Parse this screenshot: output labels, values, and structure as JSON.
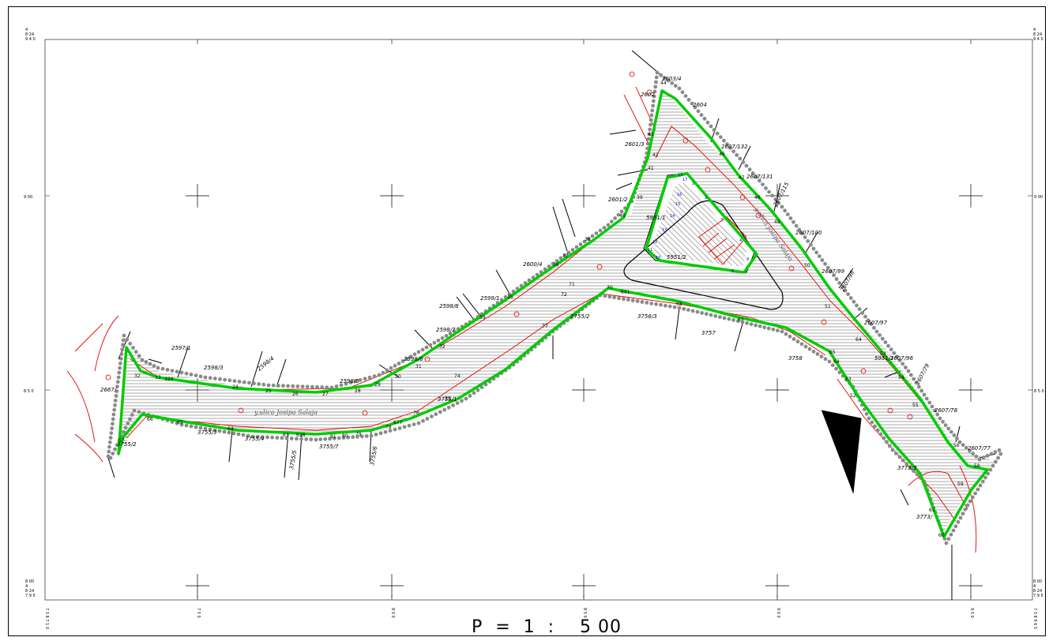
{
  "scale_label": "P  =  1  :    5 00",
  "corner_labels": {
    "top_left": [
      "4",
      "8 24",
      "9 4 0"
    ],
    "top_right": [
      "4",
      "8 24",
      "9 4 0"
    ],
    "bottom_left": [
      "8 00",
      "4",
      "8 24",
      "7 9 5"
    ],
    "bottom_right": [
      "8 00",
      "4",
      "8 24",
      "7 9 5"
    ],
    "bottom_left_rotated": "7 3 8 7 1 0",
    "bottom_right_rotated": "7 3 8 9 6 5"
  },
  "left_axis_labels": [
    "9 00",
    "8 5 0"
  ],
  "right_axis_labels": [
    "9 00",
    "8 5 0"
  ],
  "bottom_axis_labels": [
    "7 5 0",
    "8 0 0",
    "8 5 0",
    "9 0 0",
    "9 5 0"
  ],
  "parcel_labels": [
    "2603/4",
    "2602",
    "2604",
    "2601/3",
    "2607/132",
    "2607/131",
    "2607/115",
    "2601/2",
    "5951/1",
    "2607/100",
    "2600/4",
    "5951/2",
    "2607/99",
    "2607/98",
    "2599/1",
    "2598/8",
    "3755/2",
    "3756/3",
    "2607/97",
    "2598/7",
    "3757",
    "2597/1",
    "2598/6",
    "3758",
    "5951/1",
    "2607/96",
    "2607/79",
    "2598/3",
    "2598/4",
    "2598/5",
    "3755/1",
    "2667/",
    "2607/78",
    "3755/3",
    "3755/4",
    "3755/7",
    "3755/5",
    "3755/6",
    "3755/2",
    "2607/77",
    "3773/3",
    "3773/"
  ],
  "street_names": [
    "y.ulica Josipa Salaja",
    "y.ulica Josipa Salaja"
  ],
  "colors": {
    "boundary_green": "#00cc00",
    "survey_points": "#8a8a8a",
    "red_detail": "#e00000",
    "hatch": "#444444",
    "grid": "#000000"
  }
}
